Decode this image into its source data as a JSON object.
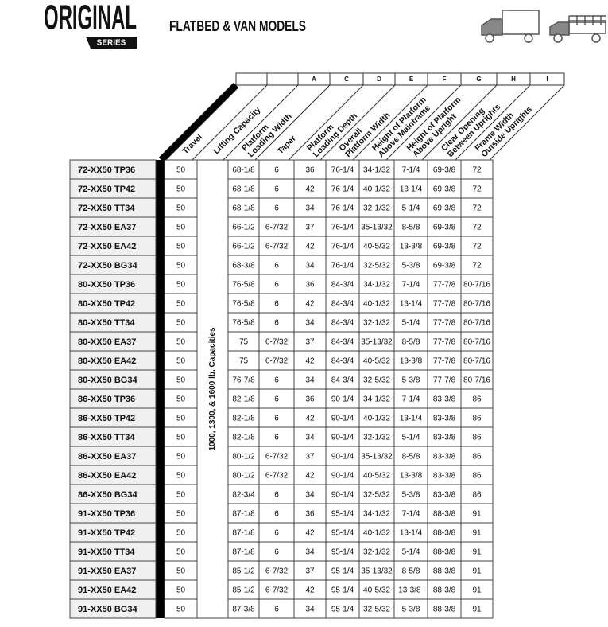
{
  "header": {
    "brand": "ORIGINAL",
    "series": "SERIES",
    "title": "FLATBED & VAN MODELS"
  },
  "table": {
    "letters": [
      "A",
      "C",
      "D",
      "E",
      "F",
      "G",
      "H",
      "I"
    ],
    "column_headers": [
      [
        "Travel"
      ],
      [
        "Lifting Capacity"
      ],
      [
        "Platform",
        "Loading Width"
      ],
      [
        "Taper"
      ],
      [
        "Platform",
        "Loading Depth"
      ],
      [
        "Overall",
        "Platform Width"
      ],
      [
        "Height of Platform",
        "Above Mainframe"
      ],
      [
        "Height of Platform",
        "Above Upright"
      ],
      [
        "Clear Opening",
        "Between Uprights"
      ],
      [
        "Frame Width",
        "Outside Uprights"
      ]
    ],
    "capacity_note": "1000, 1300, & 1600 lb. Capacities",
    "rows": [
      [
        "72-XX50 TP36",
        "50",
        "68-1/8",
        "6",
        "36",
        "76-1/4",
        "34-1/32",
        "7-1/4",
        "69-3/8",
        "72"
      ],
      [
        "72-XX50 TP42",
        "50",
        "68-1/8",
        "6",
        "42",
        "76-1/4",
        "40-1/32",
        "13-1/4",
        "69-3/8",
        "72"
      ],
      [
        "72-XX50 TT34",
        "50",
        "68-1/8",
        "6",
        "34",
        "76-1/4",
        "32-1/32",
        "5-1/4",
        "69-3/8",
        "72"
      ],
      [
        "72-XX50 EA37",
        "50",
        "66-1/2",
        "6-7/32",
        "37",
        "76-1/4",
        "35-13/32",
        "8-5/8",
        "69-3/8",
        "72"
      ],
      [
        "72-XX50 EA42",
        "50",
        "66-1/2",
        "6-7/32",
        "42",
        "76-1/4",
        "40-5/32",
        "13-3/8",
        "69-3/8",
        "72"
      ],
      [
        "72-XX50 BG34",
        "50",
        "68-3/8",
        "6",
        "34",
        "76-1/4",
        "32-5/32",
        "5-3/8",
        "69-3/8",
        "72"
      ],
      [
        "80-XX50 TP36",
        "50",
        "76-5/8",
        "6",
        "36",
        "84-3/4",
        "34-1/32",
        "7-1/4",
        "77-7/8",
        "80-7/16"
      ],
      [
        "80-XX50 TP42",
        "50",
        "76-5/8",
        "6",
        "42",
        "84-3/4",
        "40-1/32",
        "13-1/4",
        "77-7/8",
        "80-7/16"
      ],
      [
        "80-XX50 TT34",
        "50",
        "76-5/8",
        "6",
        "34",
        "84-3/4",
        "32-1/32",
        "5-1/4",
        "77-7/8",
        "80-7/16"
      ],
      [
        "80-XX50 EA37",
        "50",
        "75",
        "6-7/32",
        "37",
        "84-3/4",
        "35-13/32",
        "8-5/8",
        "77-7/8",
        "80-7/16"
      ],
      [
        "80-XX50 EA42",
        "50",
        "75",
        "6-7/32",
        "42",
        "84-3/4",
        "40-5/32",
        "13-3/8",
        "77-7/8",
        "80-7/16"
      ],
      [
        "80-XX50 BG34",
        "50",
        "76-7/8",
        "6",
        "34",
        "84-3/4",
        "32-5/32",
        "5-3/8",
        "77-7/8",
        "80-7/16"
      ],
      [
        "86-XX50 TP36",
        "50",
        "82-1/8",
        "6",
        "36",
        "90-1/4",
        "34-1/32",
        "7-1/4",
        "83-3/8",
        "86"
      ],
      [
        "86-XX50 TP42",
        "50",
        "82-1/8",
        "6",
        "42",
        "90-1/4",
        "40-1/32",
        "13-1/4",
        "83-3/8",
        "86"
      ],
      [
        "86-XX50 TT34",
        "50",
        "82-1/8",
        "6",
        "34",
        "90-1/4",
        "32-1/32",
        "5-1/4",
        "83-3/8",
        "86"
      ],
      [
        "86-XX50 EA37",
        "50",
        "80-1/2",
        "6-7/32",
        "37",
        "90-1/4",
        "35-13/32",
        "8-5/8",
        "83-3/8",
        "86"
      ],
      [
        "86-XX50 EA42",
        "50",
        "80-1/2",
        "6-7/32",
        "42",
        "90-1/4",
        "40-5/32",
        "13-3/8",
        "83-3/8",
        "86"
      ],
      [
        "86-XX50 BG34",
        "50",
        "82-3/4",
        "6",
        "34",
        "90-1/4",
        "32-5/32",
        "5-3/8",
        "83-3/8",
        "86"
      ],
      [
        "91-XX50 TP36",
        "50",
        "87-1/8",
        "6",
        "36",
        "95-1/4",
        "34-1/32",
        "7-1/4",
        "88-3/8",
        "91"
      ],
      [
        "91-XX50 TP42",
        "50",
        "87-1/8",
        "6",
        "42",
        "95-1/4",
        "40-1/32",
        "13-1/4",
        "88-3/8",
        "91"
      ],
      [
        "91-XX50 TT34",
        "50",
        "87-1/8",
        "6",
        "34",
        "95-1/4",
        "32-1/32",
        "5-1/4",
        "88-3/8",
        "91"
      ],
      [
        "91-XX50 EA37",
        "50",
        "85-1/2",
        "6-7/32",
        "37",
        "95-1/4",
        "35-13/32",
        "8-5/8",
        "88-3/8",
        "91"
      ],
      [
        "91-XX50 EA42",
        "50",
        "85-1/2",
        "6-7/32",
        "42",
        "95-1/4",
        "40-5/32",
        "13-3/8-",
        "88-3/8",
        "91"
      ],
      [
        "91-XX50 BG34",
        "50",
        "87-3/8",
        "6",
        "34",
        "95-1/4",
        "32-5/32",
        "5-3/8",
        "88-3/8",
        "91"
      ]
    ]
  }
}
